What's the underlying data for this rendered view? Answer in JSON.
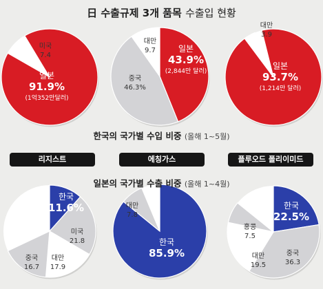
{
  "titles": {
    "main_bold": "日 수출규제 3개 품목",
    "main_light": "수출입 현황",
    "import_bold": "한국의 국가별 수입 비중",
    "import_light": "(올해 1~5월)",
    "export_bold": "일본의 국가별 수출 비중",
    "export_light": "(올해 1~4월)"
  },
  "products": [
    "리지스트",
    "에칭가스",
    "플루오드 폴리이미드"
  ],
  "colors": {
    "japan": "#d81c24",
    "korea": "#2b3fa9",
    "other": "#d3d3d6",
    "white": "#ffffff"
  },
  "chart_data": [
    {
      "type": "pie",
      "group": "import",
      "product": "리지스트",
      "slices": [
        {
          "label": "일본",
          "value": 91.9,
          "value_text": "91.9%",
          "note": "(1억352만달러)",
          "color": "#d81c24"
        },
        {
          "label": "미국",
          "value": 7.4,
          "value_text": "7.4",
          "color": "#ffffff"
        }
      ]
    },
    {
      "type": "pie",
      "group": "import",
      "product": "에칭가스",
      "slices": [
        {
          "label": "일본",
          "value": 43.9,
          "value_text": "43.9%",
          "note": "(2,844만 달러)",
          "color": "#d81c24"
        },
        {
          "label": "중국",
          "value": 46.3,
          "value_text": "46.3%",
          "color": "#d3d3d6"
        },
        {
          "label": "대만",
          "value": 9.7,
          "value_text": "9.7",
          "color": "#ffffff"
        }
      ]
    },
    {
      "type": "pie",
      "group": "import",
      "product": "플루오드 폴리이미드",
      "slices": [
        {
          "label": "일본",
          "value": 93.7,
          "value_text": "93.7%",
          "note": "(1,214만 달러)",
          "color": "#d81c24"
        },
        {
          "label": "대만",
          "value": 3.9,
          "value_text": "3.9",
          "color": "#ffffff"
        }
      ]
    },
    {
      "type": "pie",
      "group": "export",
      "product": "리지스트",
      "slices": [
        {
          "label": "한국",
          "value": 11.6,
          "value_text": "11.6%",
          "color": "#2b3fa9"
        },
        {
          "label": "미국",
          "value": 21.8,
          "value_text": "21.8",
          "color": "#d3d3d6"
        },
        {
          "label": "대만",
          "value": 17.9,
          "value_text": "17.9",
          "color": "#ffffff"
        },
        {
          "label": "중국",
          "value": 16.7,
          "value_text": "16.7",
          "color": "#d3d3d6"
        }
      ]
    },
    {
      "type": "pie",
      "group": "export",
      "product": "에칭가스",
      "slices": [
        {
          "label": "한국",
          "value": 85.9,
          "value_text": "85.9%",
          "color": "#2b3fa9"
        },
        {
          "label": "대만",
          "value": 7.8,
          "value_text": "7.8",
          "color": "#d3d3d6"
        }
      ]
    },
    {
      "type": "pie",
      "group": "export",
      "product": "플루오드 폴리이미드",
      "slices": [
        {
          "label": "한국",
          "value": 22.5,
          "value_text": "22.5%",
          "color": "#2b3fa9"
        },
        {
          "label": "중국",
          "value": 36.3,
          "value_text": "36.3",
          "color": "#d3d3d6"
        },
        {
          "label": "대만",
          "value": 19.5,
          "value_text": "19.5",
          "color": "#ffffff"
        },
        {
          "label": "홍콩",
          "value": 7.5,
          "value_text": "7.5",
          "color": "#d3d3d6"
        }
      ]
    }
  ]
}
